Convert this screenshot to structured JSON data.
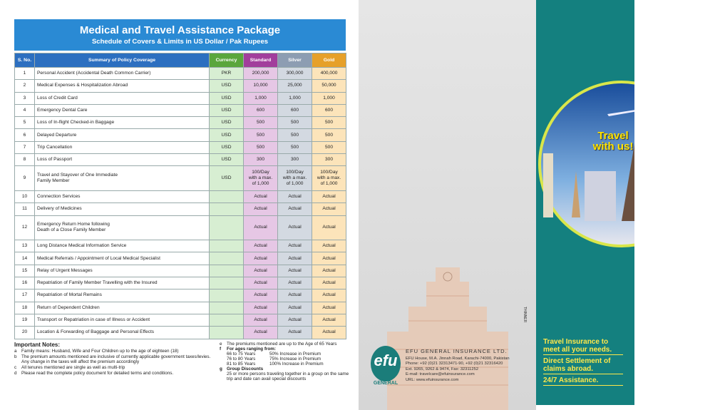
{
  "header": {
    "title": "Medical and Travel Assistance Package",
    "subtitle": "Schedule of Covers & Limits in US Dollar / Pak Rupees"
  },
  "table": {
    "columns": [
      "S. No.",
      "Summary of Policy Coverage",
      "Currency",
      "Standard",
      "Silver",
      "Gold"
    ],
    "rows": [
      {
        "sno": "1",
        "coverage": "Personal Accident (Accidental Death Common Carrier)",
        "currency": "PKR",
        "standard": "200,000",
        "silver": "300,000",
        "gold": "400,000"
      },
      {
        "sno": "2",
        "coverage": "Medical Expenses & Hospitalization Abroad",
        "currency": "USD",
        "standard": "10,000",
        "silver": "25,000",
        "gold": "50,000"
      },
      {
        "sno": "3",
        "coverage": "Loss of Credit Card",
        "currency": "USD",
        "standard": "1,000",
        "silver": "1,000",
        "gold": "1,000"
      },
      {
        "sno": "4",
        "coverage": "Emergency Dental Care",
        "currency": "USD",
        "standard": "600",
        "silver": "600",
        "gold": "600"
      },
      {
        "sno": "5",
        "coverage": "Loss of In-flight Checked-in Baggage",
        "currency": "USD",
        "standard": "500",
        "silver": "500",
        "gold": "500"
      },
      {
        "sno": "6",
        "coverage": "Delayed Departure",
        "currency": "USD",
        "standard": "500",
        "silver": "500",
        "gold": "500"
      },
      {
        "sno": "7",
        "coverage": "Trip Cancellation",
        "currency": "USD",
        "standard": "500",
        "silver": "500",
        "gold": "500"
      },
      {
        "sno": "8",
        "coverage": "Loss of Passport",
        "currency": "USD",
        "standard": "300",
        "silver": "300",
        "gold": "300"
      },
      {
        "sno": "9",
        "coverage": "Travel and Stayover of One Immediate\n Family Member",
        "currency": "USD",
        "standard": "100/Day\nwith a max.\nof 1,000",
        "silver": "100/Day\nwith a max.\nof 1,000",
        "gold": "100/Day\nwith a max.\nof 1,000"
      },
      {
        "sno": "10",
        "coverage": "Connection Services",
        "standard": "Actual",
        "silver": "Actual",
        "gold": "Actual"
      },
      {
        "sno": "11",
        "coverage": "Delivery of Medicines",
        "standard": "Actual",
        "silver": "Actual",
        "gold": "Actual"
      },
      {
        "sno": "12",
        "coverage": "Emergency Return Home following\nDeath of a Close Family Member",
        "standard": "Actual",
        "silver": "Actual",
        "gold": "Actual"
      },
      {
        "sno": "13",
        "coverage": "Long Distance Medical Information Service",
        "standard": "Actual",
        "silver": "Actual",
        "gold": "Actual"
      },
      {
        "sno": "14",
        "coverage": "Medical Referrals / Appointment of Local Medical Specialist",
        "standard": "Actual",
        "silver": "Actual",
        "gold": "Actual"
      },
      {
        "sno": "15",
        "coverage": "Relay of Urgent Messages",
        "standard": "Actual",
        "silver": "Actual",
        "gold": "Actual"
      },
      {
        "sno": "16",
        "coverage": "Repatriation of Family Member Travelling with the Insured",
        "standard": "Actual",
        "silver": "Actual",
        "gold": "Actual"
      },
      {
        "sno": "17",
        "coverage": "Repatriation of Mortal Remains",
        "standard": "Actual",
        "silver": "Actual",
        "gold": "Actual"
      },
      {
        "sno": "18",
        "coverage": "Return of Dependent Children",
        "standard": "Actual",
        "silver": "Actual",
        "gold": "Actual"
      },
      {
        "sno": "19",
        "coverage": "Transport or Repatriation in case of Illness or Accident",
        "standard": "Actual",
        "silver": "Actual",
        "gold": "Actual"
      },
      {
        "sno": "20",
        "coverage": "Location & Forwarding of Baggage and Personal Effects",
        "standard": "Actual",
        "silver": "Actual",
        "gold": "Actual"
      }
    ]
  },
  "notes": {
    "title": "Important Notes:",
    "left": [
      {
        "key": "a",
        "text": "Family means: Husband, Wife and Four Children up to the age of eighteen (18)"
      },
      {
        "key": "b",
        "text": "The premium amounts mentioned are inclusive of currently applicable government taxes/levies. Any change in the taxes will affect the premium accordingly"
      },
      {
        "key": "c",
        "text": "All tenures mentioned are single as well as multi-trip"
      },
      {
        "key": "d",
        "text": "Please read the complete policy document for detailed terms and conditions."
      }
    ],
    "e": "The premiums mentioned are up to the Age of 65 Years",
    "f": "For ages ranging from:",
    "ages": [
      [
        "66 to 75 Years",
        "50% Increase in Premium"
      ],
      [
        "76 to 80 Years",
        "75% Increase in Premium"
      ],
      [
        "81 to 85 Years",
        "100% Increase in Premium"
      ]
    ],
    "g": "Group Discounts",
    "g_text": "25 or more persons traveling together in a group on the same trip and date can avail special discounts"
  },
  "middle": {
    "thinner": "THINNER",
    "logo": "efu",
    "logo_sub": "GENERAL",
    "company": "EFU GENERAL INSURANCE LTD.",
    "address": [
      "EFU House, M.A. Jinnah Road, Karachi-74000, Pakistan",
      "Phone: +92 (0)21 32313471-90, +92 (0)21 32316420",
      "Ext. 9265, 9262 & 9474, Fax: 32311252",
      "E-mail: travelcare@efuinsurance.com",
      "URL: www.efuinsurance.com"
    ]
  },
  "right": {
    "badge": "Travel\nwith us!",
    "taglines": [
      "Travel Insurance to meet all your needs.",
      "Direct Settlement of claims abroad.",
      "24/7 Assistance."
    ]
  }
}
